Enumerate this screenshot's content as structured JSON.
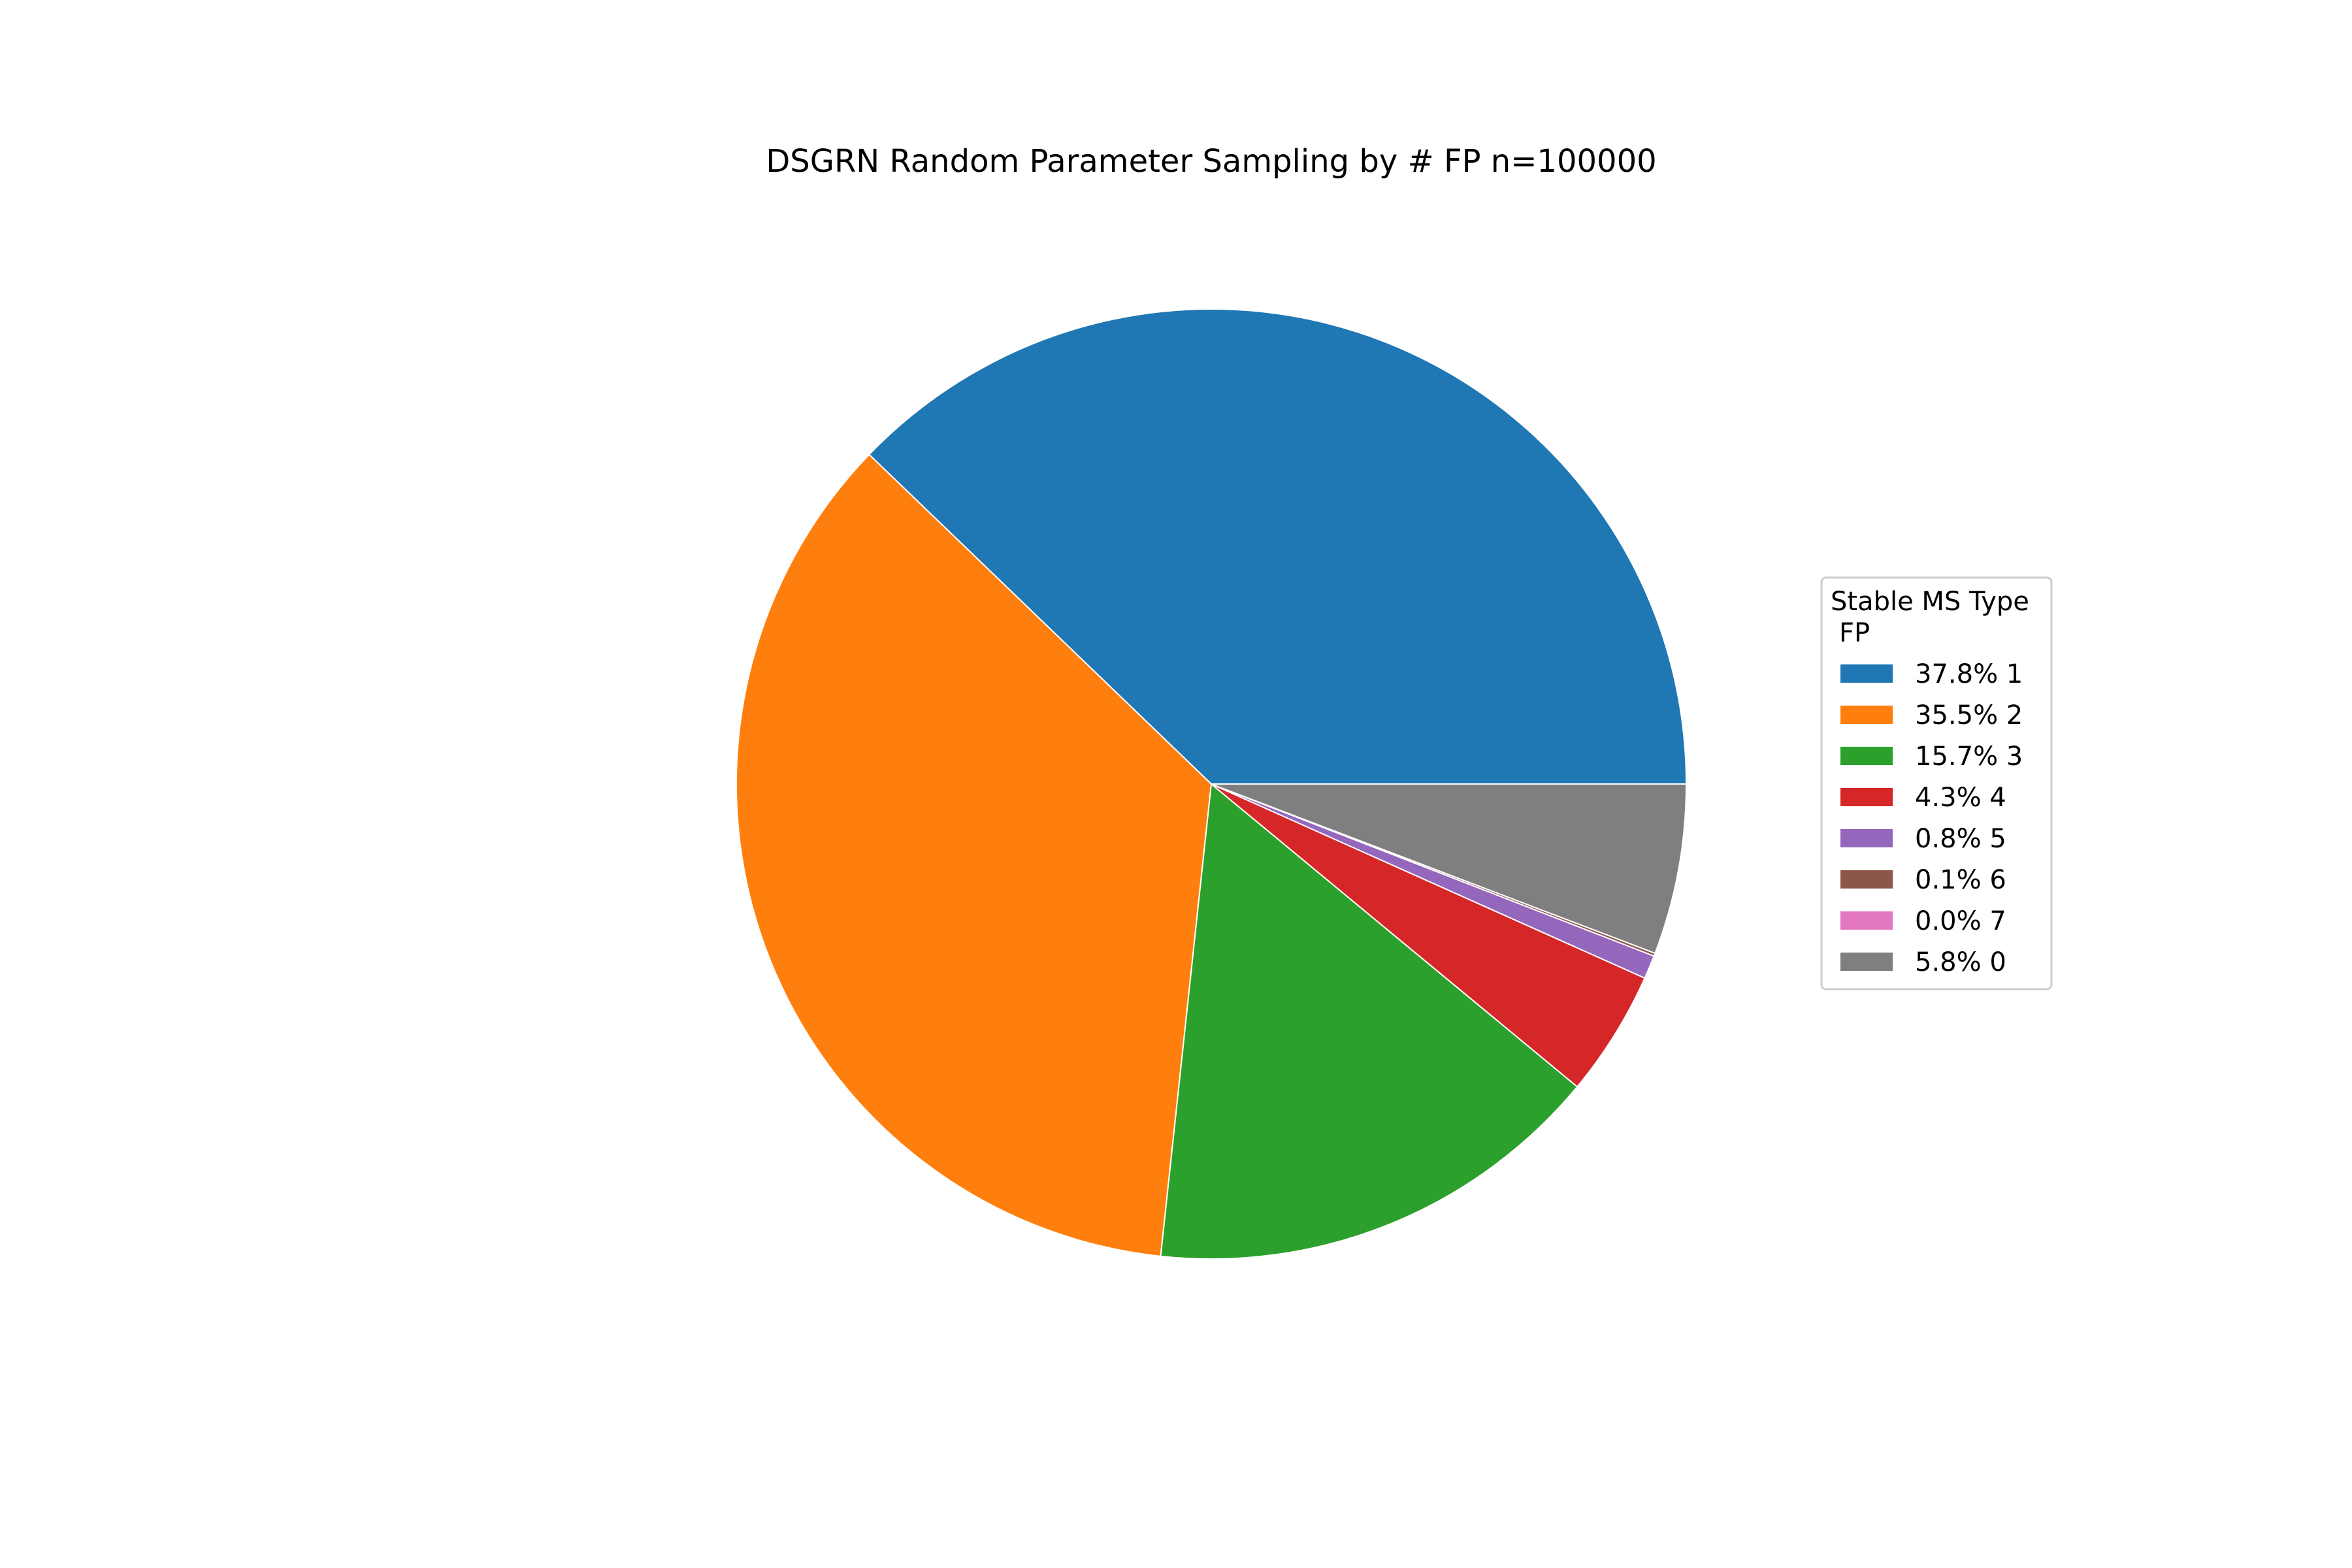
{
  "chart_data": {
    "type": "pie",
    "title": "DSGRN Random Parameter Sampling by # FP n=100000",
    "start_angle_deg": 0,
    "direction": "counterclockwise",
    "slices": [
      {
        "label": "37.8% 1",
        "value": 37.8,
        "color": "#1f77b4"
      },
      {
        "label": "35.5% 2",
        "value": 35.5,
        "color": "#ff7f0e"
      },
      {
        "label": "15.7% 3",
        "value": 15.7,
        "color": "#2ca02c"
      },
      {
        "label": "4.3% 4",
        "value": 4.3,
        "color": "#d62728"
      },
      {
        "label": "0.8% 5",
        "value": 0.8,
        "color": "#9467bd"
      },
      {
        "label": "0.1% 6",
        "value": 0.1,
        "color": "#8c564b"
      },
      {
        "label": "0.0% 7",
        "value": 0.0,
        "color": "#e377c2"
      },
      {
        "label": "5.8% 0",
        "value": 5.8,
        "color": "#7f7f7f"
      }
    ],
    "legend": {
      "title_lines": [
        "Stable MS Type",
        "FP"
      ],
      "placement": "right"
    },
    "wedge_edge_color": "#ffffff"
  }
}
